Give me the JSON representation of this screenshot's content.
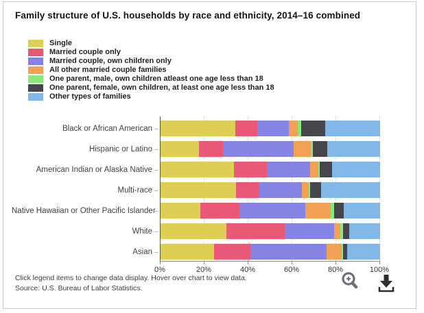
{
  "title": "Family structure of U.S. households by race and ethnicity, 2014–16 combined",
  "footer": {
    "hint": "Click legend items to change data display. Hover over chart to view data.",
    "source": "Source: U.S. Bureau of Labor Statistics."
  },
  "icons": {
    "zoom": "magnifier-zoom",
    "download": "download-arrow"
  },
  "colors": {
    "axis": "#55555e",
    "grid": "#d5d5dc",
    "icon_gray": "#6f6f78",
    "icon_dark": "#2f2f33"
  },
  "chart_data": {
    "type": "bar",
    "orientation": "horizontal",
    "stacked": true,
    "title": "Family structure of U.S. households by race and ethnicity, 2014–16 combined",
    "xlim": [
      0,
      100
    ],
    "x_tick_labels": [
      "0%",
      "20%",
      "40%",
      "60%",
      "80%",
      "100%"
    ],
    "grid": "vertical-dashed",
    "legend_position": "top-left",
    "categories": [
      "Black or African American",
      "Hispanic or Latino",
      "American Indian or Alaska Native",
      "Multi-race",
      "Native Hawaiian or Other Pacific Islander",
      "White",
      "Asian"
    ],
    "series": [
      {
        "name": "Single",
        "color": "#ddce56",
        "values": [
          34,
          17.5,
          33.5,
          34.5,
          18,
          30,
          24.5
        ]
      },
      {
        "name": "Married couple only",
        "color": "#ea5878",
        "values": [
          10,
          11,
          15,
          10.5,
          18,
          26.5,
          16.5
        ]
      },
      {
        "name": "Married couple, own children only",
        "color": "#8583e3",
        "values": [
          14.5,
          32,
          19.5,
          19.5,
          30,
          22.5,
          34.5
        ]
      },
      {
        "name": "All other married couple families",
        "color": "#f2a054",
        "values": [
          4,
          8,
          4,
          3,
          11.5,
          3,
          7
        ]
      },
      {
        "name": "One parent, male, own children atleast one age less than 18",
        "color": "#8ce87e",
        "values": [
          1.5,
          1,
          0.5,
          0.5,
          1.5,
          1,
          0.5
        ]
      },
      {
        "name": "One parent, female, own children, at least one age less than 18",
        "color": "#45464b",
        "values": [
          11,
          6.5,
          5.5,
          5,
          4.5,
          3,
          2
        ]
      },
      {
        "name": "Other types of families",
        "color": "#82b8e8",
        "values": [
          25,
          24,
          22,
          27,
          16.5,
          14,
          15
        ]
      }
    ]
  }
}
